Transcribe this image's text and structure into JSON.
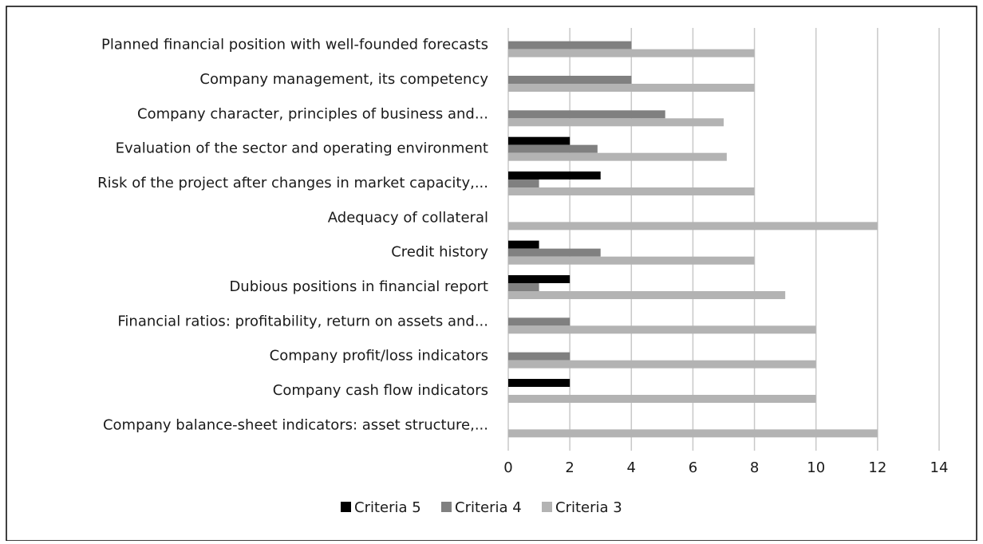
{
  "chart_data": {
    "type": "barh",
    "categories": [
      "Planned financial position with well-founded forecasts",
      "Company management, its competency",
      "Company character, principles of business and...",
      "Evaluation of the sector and operating environment",
      "Risk of the project after changes in market capacity,...",
      "Adequacy of collateral",
      "Credit history",
      "Dubious positions in financial report",
      "Financial ratios: profitability, return on assets and...",
      "Company profit/loss indicators",
      "Company cash flow indicators",
      "Company balance-sheet indicators: asset structure,..."
    ],
    "series": [
      {
        "name": "Criteria 5",
        "color": "#000000",
        "values": [
          0,
          0,
          0,
          2,
          3,
          0,
          1,
          2,
          0,
          0,
          2,
          0
        ]
      },
      {
        "name": "Criteria 4",
        "color": "#808080",
        "values": [
          4,
          4,
          5.1,
          2.9,
          1,
          0,
          3,
          1,
          2,
          2,
          0,
          0
        ]
      },
      {
        "name": "Criteria 3",
        "color": "#b3b3b3",
        "values": [
          8,
          8,
          7,
          7.1,
          8,
          12,
          8,
          9,
          10,
          10,
          10,
          12
        ]
      }
    ],
    "xlim": [
      0,
      14
    ],
    "xticks": [
      0,
      2,
      4,
      6,
      8,
      10,
      12,
      14
    ],
    "grid": true,
    "legend": "bottom"
  }
}
